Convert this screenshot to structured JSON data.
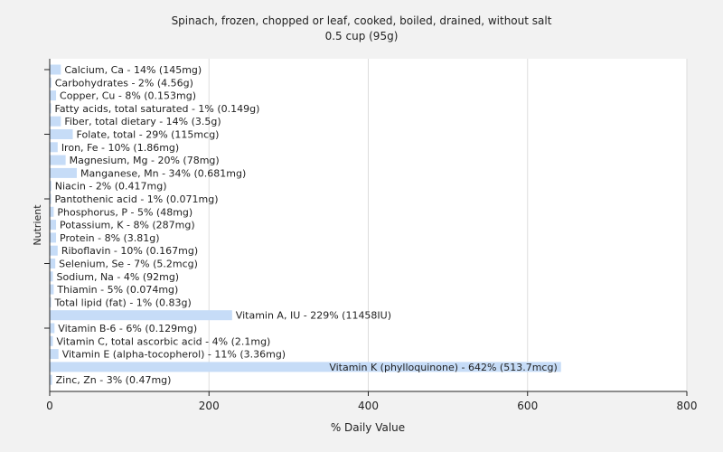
{
  "chart_data": {
    "type": "bar",
    "orientation": "horizontal",
    "title": "Spinach, frozen, chopped or leaf, cooked, boiled, drained, without salt",
    "subtitle": "0.5 cup (95g)",
    "xlabel": "% Daily Value",
    "ylabel": "Nutrient",
    "xlim": [
      0,
      800
    ],
    "xticks": [
      "0",
      "200",
      "400",
      "600",
      "800"
    ],
    "grid": true,
    "bar_color": "#c6dcf7",
    "categories": [
      "Calcium, Ca",
      "Carbohydrates",
      "Copper, Cu",
      "Fatty acids, total saturated",
      "Fiber, total dietary",
      "Folate, total",
      "Iron, Fe",
      "Magnesium, Mg",
      "Manganese, Mn",
      "Niacin",
      "Pantothenic acid",
      "Phosphorus, P",
      "Potassium, K",
      "Protein",
      "Riboflavin",
      "Selenium, Se",
      "Sodium, Na",
      "Thiamin",
      "Total lipid (fat)",
      "Vitamin A, IU",
      "Vitamin B-6",
      "Vitamin C, total ascorbic acid",
      "Vitamin E (alpha-tocopherol)",
      "Vitamin K (phylloquinone)",
      "Zinc, Zn"
    ],
    "values": [
      14,
      2,
      8,
      1,
      14,
      29,
      10,
      20,
      34,
      2,
      1,
      5,
      8,
      8,
      10,
      7,
      4,
      5,
      1,
      229,
      6,
      4,
      11,
      642,
      3
    ],
    "labels": [
      "Calcium, Ca - 14% (145mg)",
      "Carbohydrates - 2% (4.56g)",
      "Copper, Cu - 8% (0.153mg)",
      "Fatty acids, total saturated - 1% (0.149g)",
      "Fiber, total dietary - 14% (3.5g)",
      "Folate, total - 29% (115mcg)",
      "Iron, Fe - 10% (1.86mg)",
      "Magnesium, Mg - 20% (78mg)",
      "Manganese, Mn - 34% (0.681mg)",
      "Niacin - 2% (0.417mg)",
      "Pantothenic acid - 1% (0.071mg)",
      "Phosphorus, P - 5% (48mg)",
      "Potassium, K - 8% (287mg)",
      "Protein - 8% (3.81g)",
      "Riboflavin - 10% (0.167mg)",
      "Selenium, Se - 7% (5.2mcg)",
      "Sodium, Na - 4% (92mg)",
      "Thiamin - 5% (0.074mg)",
      "Total lipid (fat) - 1% (0.83g)",
      "Vitamin A, IU - 229% (11458IU)",
      "Vitamin B-6 - 6% (0.129mg)",
      "Vitamin C, total ascorbic acid - 4% (2.1mg)",
      "Vitamin E (alpha-tocopherol) - 11% (3.36mg)",
      "Vitamin K (phylloquinone) - 642% (513.7mcg)",
      "Zinc, Zn - 3% (0.47mg)"
    ]
  }
}
